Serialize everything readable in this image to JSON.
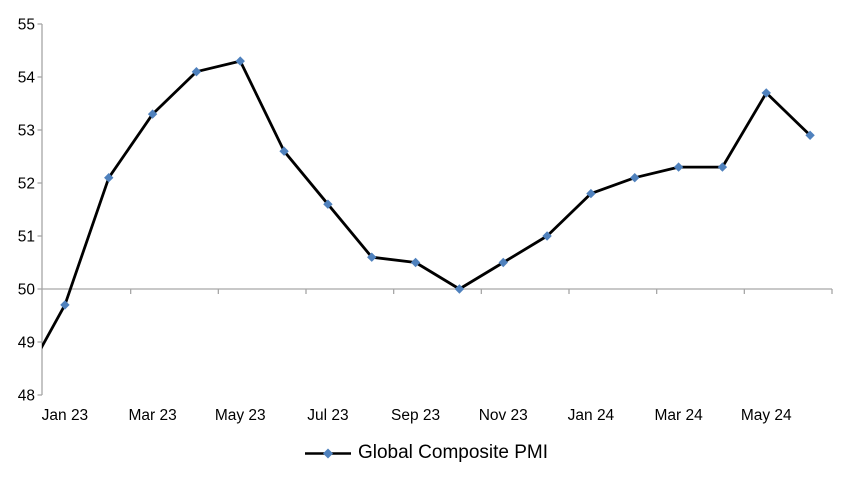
{
  "chart_data": {
    "type": "line",
    "title": "",
    "x": [
      "Dec 22",
      "Jan 23",
      "Feb 23",
      "Mar 23",
      "Apr 23",
      "May 23",
      "Jun 23",
      "Jul 23",
      "Aug 23",
      "Sep 23",
      "Oct 23",
      "Nov 23",
      "Dec 23",
      "Jan 24",
      "Feb 24",
      "Mar 24",
      "Apr 24",
      "May 24",
      "Jun 24"
    ],
    "series": [
      {
        "name": "Global Composite PMI",
        "values": [
          48.2,
          49.7,
          52.1,
          53.3,
          54.1,
          54.3,
          52.6,
          51.6,
          50.6,
          50.5,
          50.0,
          50.5,
          51.0,
          51.8,
          52.1,
          52.3,
          52.3,
          53.7,
          52.9
        ]
      }
    ],
    "x_tick_labels": [
      "Jan 23",
      "Mar 23",
      "May 23",
      "Jul 23",
      "Sep 23",
      "Nov 23",
      "Jan 24",
      "Mar 24",
      "May 24"
    ],
    "y_ticks": [
      48,
      49,
      50,
      51,
      52,
      53,
      54,
      55
    ],
    "ylim": [
      48,
      55
    ],
    "x_axis_position": 50,
    "first_point_clipped_at_axis": true,
    "grid": "off",
    "legend": {
      "label": "Global Composite PMI",
      "position": "bottom-center",
      "marker": "diamond"
    },
    "colors": {
      "line": "#000000",
      "marker": "#4F81BD",
      "axis": "#A6A6A6",
      "text": "#000000"
    }
  }
}
